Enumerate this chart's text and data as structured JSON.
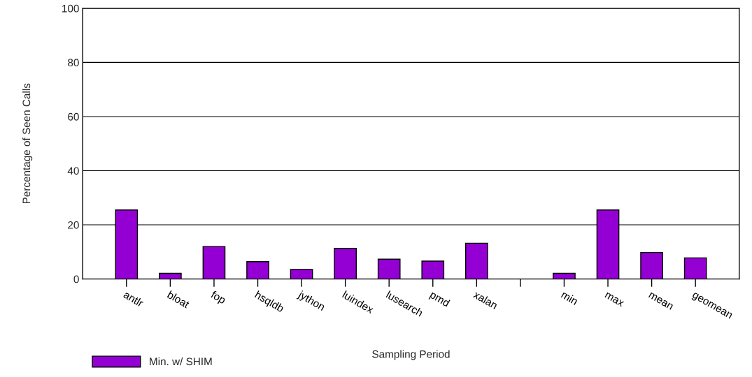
{
  "chart_data": {
    "type": "bar",
    "xlabel": "Sampling Period",
    "ylabel": "Percentage of Seen Calls",
    "categories": [
      "antlr",
      "bloat",
      "fop",
      "hsqldb",
      "jython",
      "luindex",
      "lusearch",
      "pmd",
      "xalan",
      null,
      "min",
      "max",
      "mean",
      "geomean"
    ],
    "series": [
      {
        "name": "Min. w/ SHIM",
        "color": "#9400d3",
        "values": [
          25.5,
          2.1,
          12.0,
          6.4,
          3.5,
          11.3,
          7.3,
          6.6,
          13.2,
          null,
          2.1,
          25.5,
          9.8,
          7.8
        ]
      }
    ],
    "ylim": [
      0,
      100
    ],
    "yticks": [
      0,
      20,
      40,
      60,
      80,
      100
    ],
    "grid": "y",
    "legend": "bottom left"
  }
}
